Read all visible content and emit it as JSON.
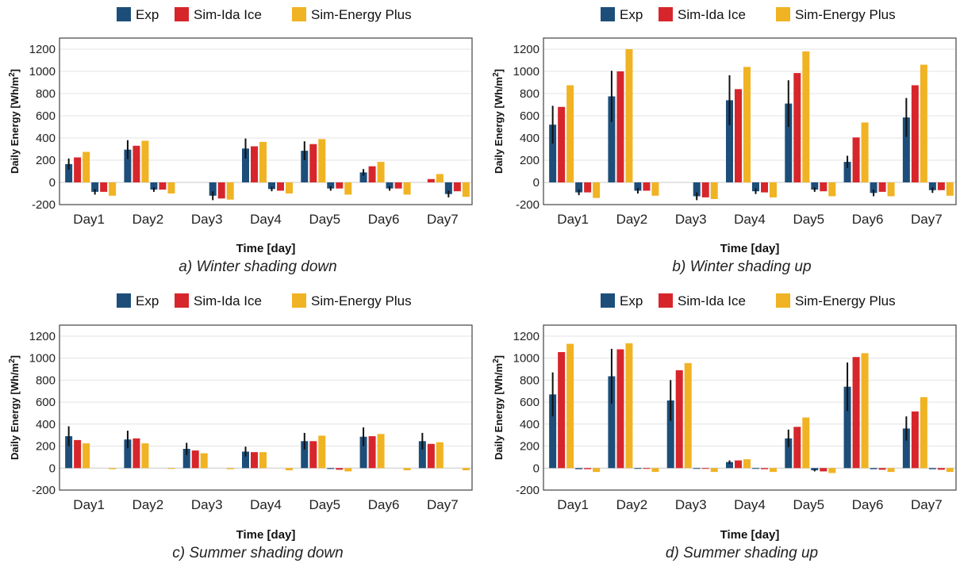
{
  "colors": {
    "exp": "#1d4e79",
    "ida": "#d7262b",
    "ep": "#f0b323",
    "error": "#111111",
    "grid": "#e3e3e3",
    "axis": "#444444"
  },
  "legend": {
    "items": [
      "Exp",
      "Sim-Ida Ice",
      "Sim-Energy Plus"
    ]
  },
  "chart_data": [
    {
      "type": "bar",
      "caption": "a) Winter shading down",
      "xlabel": "Time [day]",
      "ylabel": "Daily Energy [Wh/m",
      "ylabel_sup": "2",
      "ylabel_end": "]",
      "ylim": [
        -200,
        1300
      ],
      "yticks": [
        -200,
        0,
        200,
        400,
        600,
        800,
        1000,
        1200
      ],
      "grid": true,
      "legend_position": "top",
      "categories": [
        "Day1",
        "Day2",
        "Day3",
        "Day4",
        "Day5",
        "Day6",
        "Day7"
      ],
      "series": [
        {
          "name": "Exp",
          "values": [
            165,
            295,
            0,
            305,
            285,
            90,
            0
          ],
          "errors": [
            50,
            85,
            0,
            90,
            85,
            30,
            0
          ]
        },
        {
          "name": "Sim-Ida Ice",
          "values": [
            225,
            330,
            0,
            325,
            345,
            145,
            30
          ]
        },
        {
          "name": "Sim-Energy Plus",
          "values": [
            275,
            375,
            0,
            365,
            390,
            185,
            75
          ]
        },
        {
          "name": "Exp",
          "values": [
            -85,
            -65,
            -120,
            -60,
            -55,
            -55,
            -105
          ],
          "errors": [
            25,
            20,
            40,
            20,
            20,
            20,
            30
          ]
        },
        {
          "name": "Sim-Ida Ice",
          "values": [
            -85,
            -65,
            -145,
            -75,
            -55,
            -55,
            -80
          ]
        },
        {
          "name": "Sim-Energy Plus",
          "values": [
            -120,
            -100,
            -155,
            -100,
            -110,
            -110,
            -130
          ]
        }
      ]
    },
    {
      "type": "bar",
      "caption": "b) Winter shading up",
      "xlabel": "Time [day]",
      "ylabel": "Daily Energy [Wh/m",
      "ylabel_sup": "2",
      "ylabel_end": "]",
      "ylim": [
        -200,
        1300
      ],
      "yticks": [
        -200,
        0,
        200,
        400,
        600,
        800,
        1000,
        1200
      ],
      "grid": true,
      "legend_position": "top",
      "categories": [
        "Day1",
        "Day2",
        "Day3",
        "Day4",
        "Day5",
        "Day6",
        "Day7"
      ],
      "series": [
        {
          "name": "Exp",
          "values": [
            520,
            775,
            0,
            740,
            710,
            185,
            585
          ],
          "errors": [
            170,
            230,
            0,
            225,
            210,
            55,
            175
          ]
        },
        {
          "name": "Sim-Ida Ice",
          "values": [
            680,
            1000,
            0,
            840,
            985,
            405,
            875
          ]
        },
        {
          "name": "Sim-Energy Plus",
          "values": [
            875,
            1200,
            0,
            1040,
            1180,
            540,
            1060
          ]
        },
        {
          "name": "Exp",
          "values": [
            -90,
            -75,
            -125,
            -80,
            -65,
            -95,
            -70
          ],
          "errors": [
            25,
            25,
            35,
            25,
            20,
            30,
            25
          ]
        },
        {
          "name": "Sim-Ida Ice",
          "values": [
            -90,
            -75,
            -135,
            -90,
            -80,
            -85,
            -70
          ]
        },
        {
          "name": "Sim-Energy Plus",
          "values": [
            -140,
            -120,
            -150,
            -135,
            -125,
            -125,
            -120
          ]
        }
      ]
    },
    {
      "type": "bar",
      "caption": "c) Summer shading down",
      "xlabel": "Time [day]",
      "ylabel": "Daily Energy [Wh/m",
      "ylabel_sup": "2",
      "ylabel_end": "]",
      "ylim": [
        -200,
        1300
      ],
      "yticks": [
        -200,
        0,
        200,
        400,
        600,
        800,
        1000,
        1200
      ],
      "grid": true,
      "legend_position": "top",
      "categories": [
        "Day1",
        "Day2",
        "Day3",
        "Day4",
        "Day5",
        "Day6",
        "Day7"
      ],
      "series": [
        {
          "name": "Exp",
          "values": [
            290,
            260,
            175,
            150,
            245,
            285,
            245
          ],
          "errors": [
            90,
            80,
            55,
            45,
            75,
            85,
            75
          ]
        },
        {
          "name": "Sim-Ida Ice",
          "values": [
            255,
            270,
            160,
            145,
            245,
            290,
            220
          ]
        },
        {
          "name": "Sim-Energy Plus",
          "values": [
            225,
            225,
            135,
            145,
            295,
            310,
            235
          ]
        },
        {
          "name": "Exp",
          "values": [
            0,
            0,
            0,
            0,
            -8,
            0,
            0
          ],
          "errors": [
            0,
            0,
            0,
            0,
            0,
            0,
            0
          ]
        },
        {
          "name": "Sim-Ida Ice",
          "values": [
            0,
            0,
            0,
            0,
            -15,
            0,
            0
          ]
        },
        {
          "name": "Sim-Energy Plus",
          "values": [
            -10,
            -5,
            -10,
            -20,
            -30,
            -20,
            -20
          ]
        }
      ]
    },
    {
      "type": "bar",
      "caption": "d) Summer shading up",
      "xlabel": "Time [day]",
      "ylabel": "Daily Energy [Wh/m",
      "ylabel_sup": "2",
      "ylabel_end": "]",
      "ylim": [
        -200,
        1300
      ],
      "yticks": [
        -200,
        0,
        200,
        400,
        600,
        800,
        1000,
        1200
      ],
      "grid": true,
      "legend_position": "top",
      "categories": [
        "Day1",
        "Day2",
        "Day3",
        "Day4",
        "Day5",
        "Day6",
        "Day7"
      ],
      "series": [
        {
          "name": "Exp",
          "values": [
            670,
            835,
            615,
            55,
            270,
            740,
            360
          ],
          "errors": [
            200,
            250,
            185,
            15,
            80,
            220,
            110
          ]
        },
        {
          "name": "Sim-Ida Ice",
          "values": [
            1055,
            1080,
            890,
            70,
            375,
            1010,
            515
          ]
        },
        {
          "name": "Sim-Energy Plus",
          "values": [
            1130,
            1135,
            955,
            80,
            460,
            1045,
            645
          ]
        },
        {
          "name": "Exp",
          "values": [
            -10,
            -5,
            -5,
            -5,
            -20,
            -10,
            -10
          ],
          "errors": [
            0,
            0,
            0,
            0,
            10,
            0,
            0
          ]
        },
        {
          "name": "Sim-Ida Ice",
          "values": [
            -10,
            -5,
            -5,
            -10,
            -30,
            -15,
            -15
          ]
        },
        {
          "name": "Sim-Energy Plus",
          "values": [
            -35,
            -35,
            -35,
            -35,
            -45,
            -35,
            -35
          ]
        }
      ]
    }
  ]
}
